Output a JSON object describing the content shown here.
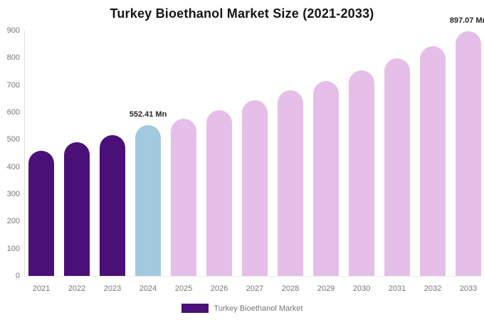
{
  "title": "Turkey Bioethanol Market Size (2021-2033)",
  "legend": {
    "label": "Turkey Bioethanol Market",
    "swatch_color": "#4B1077"
  },
  "colors": {
    "historical_bar": "#4B1077",
    "base_year_bar": "#A3C9DE",
    "forecast_bar": "#E5BFE8",
    "axis_text": "#757575",
    "annotation_text": "#262626"
  },
  "chart_data": {
    "type": "bar",
    "title": "Turkey Bioethanol Market Size (2021-2033)",
    "categories": [
      "2021",
      "2022",
      "2023",
      "2024",
      "2025",
      "2026",
      "2027",
      "2028",
      "2029",
      "2030",
      "2031",
      "2032",
      "2033"
    ],
    "values": [
      460,
      490,
      517,
      552.41,
      577,
      609,
      644,
      680,
      716,
      755,
      799,
      843,
      897.07
    ],
    "unit": "Mn",
    "xlabel": "",
    "ylabel": "",
    "ylim": [
      0,
      900
    ],
    "yticks": [
      0,
      100,
      200,
      300,
      400,
      500,
      600,
      700,
      800,
      900
    ],
    "grid": false,
    "legend_position": "bottom",
    "bar_colors": [
      "#4B1077",
      "#4B1077",
      "#4B1077",
      "#A3C9DE",
      "#E5BFE8",
      "#E5BFE8",
      "#E5BFE8",
      "#E5BFE8",
      "#E5BFE8",
      "#E5BFE8",
      "#E5BFE8",
      "#E5BFE8",
      "#E5BFE8"
    ],
    "annotations": [
      {
        "category": "2024",
        "text": "552.41 Mn"
      },
      {
        "category": "2033",
        "text": "897.07 Mn"
      }
    ]
  }
}
